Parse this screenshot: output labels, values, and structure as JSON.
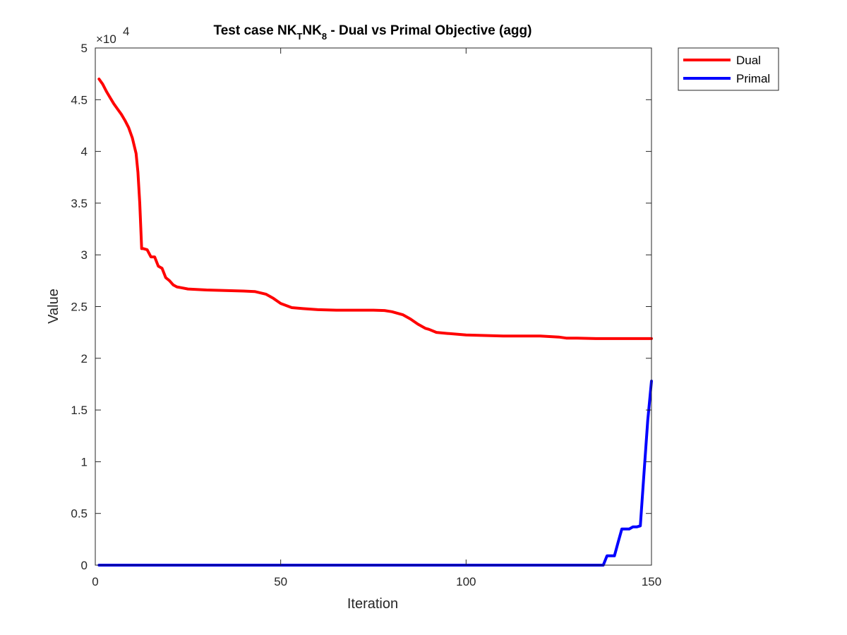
{
  "chart_data": {
    "type": "line",
    "title": {
      "prefix": "Test case NK",
      "sub1": "T",
      "mid": "NK",
      "sub2": "8",
      "suffix": " - Dual vs Primal Objective (agg)"
    },
    "xlabel": "Iteration",
    "ylabel": "Value",
    "xlim": [
      0,
      150
    ],
    "ylim": [
      0,
      50000
    ],
    "xticks": [
      0,
      50,
      100,
      150
    ],
    "yticks": [
      0,
      5000,
      10000,
      15000,
      20000,
      25000,
      30000,
      35000,
      40000,
      45000,
      50000
    ],
    "ytick_labels": [
      "0",
      "0.5",
      "1",
      "1.5",
      "2",
      "2.5",
      "3",
      "3.5",
      "4",
      "4.5",
      "5"
    ],
    "yexponent": {
      "base": "×10",
      "power": "4"
    },
    "legend_position": "outside-top-right",
    "series": [
      {
        "name": "Dual",
        "color": "#ff0000",
        "x": [
          1,
          2,
          3,
          4,
          5,
          6,
          7,
          8,
          9,
          10,
          11,
          11.5,
          12,
          12.5,
          13,
          14,
          15,
          16,
          17,
          18,
          19,
          20,
          21,
          22,
          25,
          30,
          35,
          40,
          43,
          46,
          48,
          50,
          53,
          56,
          60,
          65,
          70,
          75,
          78,
          80,
          83,
          85,
          87,
          89,
          90,
          92,
          95,
          100,
          105,
          110,
          115,
          120,
          125,
          127,
          130,
          135,
          140,
          145,
          150
        ],
        "y": [
          47000,
          46500,
          45800,
          45200,
          44600,
          44100,
          43600,
          43000,
          42300,
          41300,
          39800,
          38000,
          35000,
          30600,
          30600,
          30500,
          29800,
          29800,
          28900,
          28700,
          27800,
          27500,
          27100,
          26900,
          26700,
          26600,
          26550,
          26500,
          26450,
          26200,
          25800,
          25300,
          24900,
          24800,
          24700,
          24650,
          24650,
          24650,
          24620,
          24500,
          24200,
          23800,
          23300,
          22900,
          22800,
          22500,
          22400,
          22250,
          22200,
          22150,
          22150,
          22150,
          22050,
          21950,
          21950,
          21900,
          21900,
          21900,
          21900
        ]
      },
      {
        "name": "Primal",
        "color": "#0000ff",
        "x": [
          1,
          20,
          50,
          100,
          130,
          137,
          138,
          139,
          140,
          141,
          142,
          143,
          144,
          145,
          146,
          147,
          148,
          149,
          150
        ],
        "y": [
          0,
          0,
          0,
          0,
          0,
          0,
          900,
          900,
          900,
          2200,
          3500,
          3500,
          3500,
          3700,
          3700,
          3800,
          9000,
          14000,
          17800
        ]
      }
    ]
  }
}
